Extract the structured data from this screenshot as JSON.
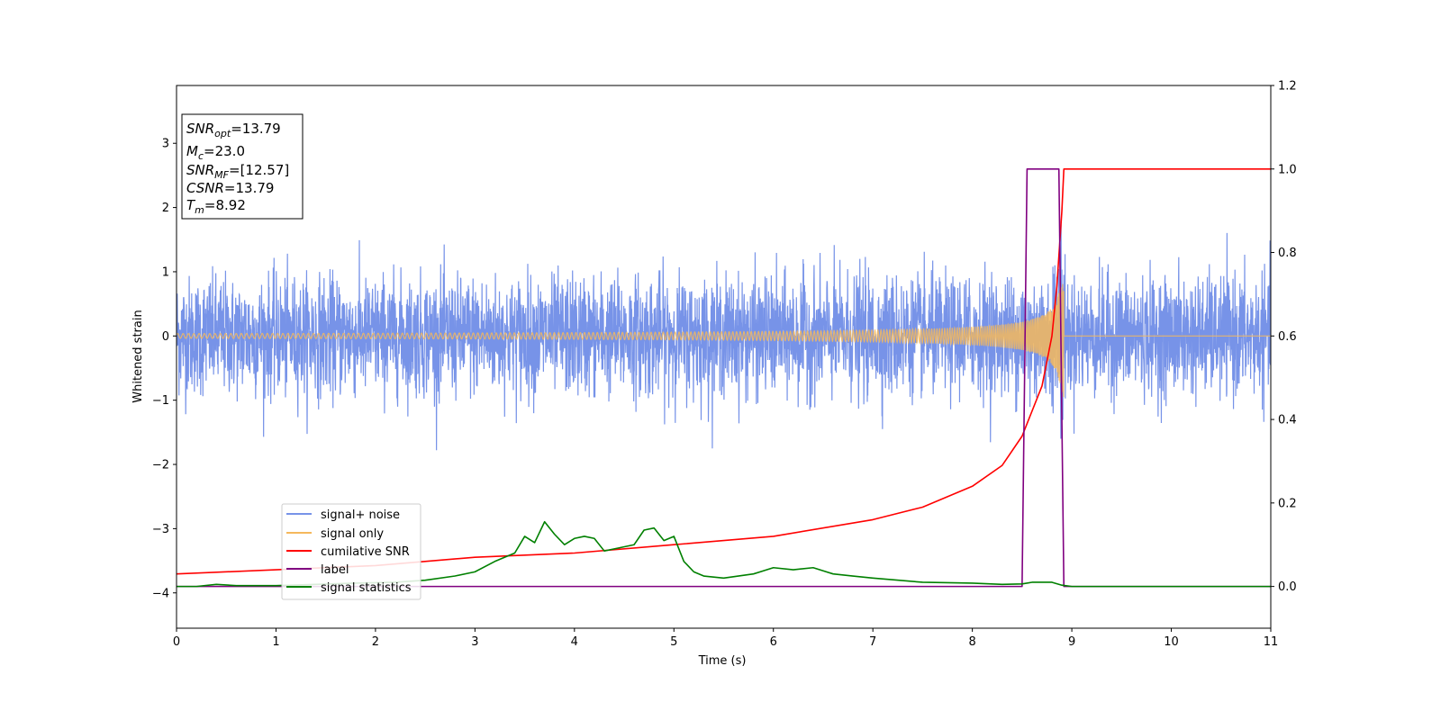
{
  "chart_data": {
    "type": "line",
    "xlabel": "Time (s)",
    "ylabel": "Whitened strain",
    "xlim": [
      0,
      11
    ],
    "ylim": [
      -4.55,
      3.9
    ],
    "y2lim": [
      -0.1,
      1.2
    ],
    "grid": false,
    "legend_placement": "lower-left",
    "x_ticks": [
      0,
      1,
      2,
      3,
      4,
      5,
      6,
      7,
      8,
      9,
      10,
      11
    ],
    "y_ticks": [
      -4,
      -3,
      -2,
      -1,
      0,
      1,
      2,
      3
    ],
    "y2_ticks": [
      0.0,
      0.2,
      0.4,
      0.6,
      0.8,
      1.0,
      1.2
    ],
    "x_tick_labels": [
      "0",
      "1",
      "2",
      "3",
      "4",
      "5",
      "6",
      "7",
      "8",
      "9",
      "10",
      "11"
    ],
    "y_tick_labels": [
      "−4",
      "−3",
      "−2",
      "−1",
      "0",
      "1",
      "2",
      "3"
    ],
    "y2_tick_labels": [
      "0.0",
      "0.2",
      "0.4",
      "0.6",
      "0.8",
      "1.0",
      "1.2"
    ],
    "info_box": {
      "snr_opt": "=13.79",
      "mc": "=23.0",
      "snr_mf": "=[12.57]",
      "csnr": "=13.79",
      "tm": "=8.92"
    },
    "series": [
      {
        "name": "signal+ noise",
        "axis": "left",
        "color": "#7793e8",
        "description_levels": {
          "noise_std": 0.45,
          "max_abs": 2.1
        }
      },
      {
        "name": "signal only",
        "axis": "left",
        "color": "#f5b85c",
        "chirp_merger_time": 8.92,
        "peak_amplitude": 0.95
      },
      {
        "name": "cumilative SNR",
        "axis": "right",
        "color": "#ff0000",
        "x": [
          0,
          1,
          2,
          3,
          4,
          5,
          6,
          7,
          7.5,
          8,
          8.3,
          8.5,
          8.7,
          8.8,
          8.85,
          8.9,
          8.92,
          9,
          11
        ],
        "values": [
          0.03,
          0.04,
          0.05,
          0.07,
          0.08,
          0.1,
          0.12,
          0.16,
          0.19,
          0.24,
          0.29,
          0.36,
          0.48,
          0.6,
          0.72,
          0.9,
          1.0,
          1.0,
          1.0
        ]
      },
      {
        "name": "label",
        "axis": "right",
        "color": "#800080",
        "x": [
          0,
          8.5,
          8.55,
          8.87,
          8.92,
          11
        ],
        "values": [
          0.0,
          0.0,
          1.0,
          1.0,
          0.0,
          0.0
        ]
      },
      {
        "name": "signal statistics",
        "axis": "right",
        "color": "#008000",
        "x": [
          0,
          0.2,
          0.4,
          0.6,
          1.0,
          1.4,
          1.8,
          2.2,
          2.5,
          2.8,
          3.0,
          3.2,
          3.4,
          3.5,
          3.6,
          3.7,
          3.8,
          3.9,
          4.0,
          4.1,
          4.2,
          4.3,
          4.4,
          4.6,
          4.7,
          4.8,
          4.9,
          5.0,
          5.1,
          5.2,
          5.3,
          5.5,
          5.8,
          6.0,
          6.2,
          6.4,
          6.6,
          6.8,
          7.0,
          7.5,
          8.0,
          8.3,
          8.5,
          8.6,
          8.8,
          8.9,
          9.0,
          11
        ],
        "values": [
          0.0,
          0.0,
          0.005,
          0.002,
          0.002,
          0.005,
          0.008,
          0.01,
          0.015,
          0.025,
          0.035,
          0.06,
          0.08,
          0.12,
          0.105,
          0.155,
          0.125,
          0.1,
          0.115,
          0.12,
          0.115,
          0.085,
          0.09,
          0.1,
          0.135,
          0.14,
          0.11,
          0.12,
          0.06,
          0.035,
          0.025,
          0.02,
          0.03,
          0.045,
          0.04,
          0.045,
          0.03,
          0.025,
          0.02,
          0.01,
          0.008,
          0.005,
          0.006,
          0.01,
          0.01,
          0.003,
          0.0,
          0.0
        ]
      }
    ]
  }
}
